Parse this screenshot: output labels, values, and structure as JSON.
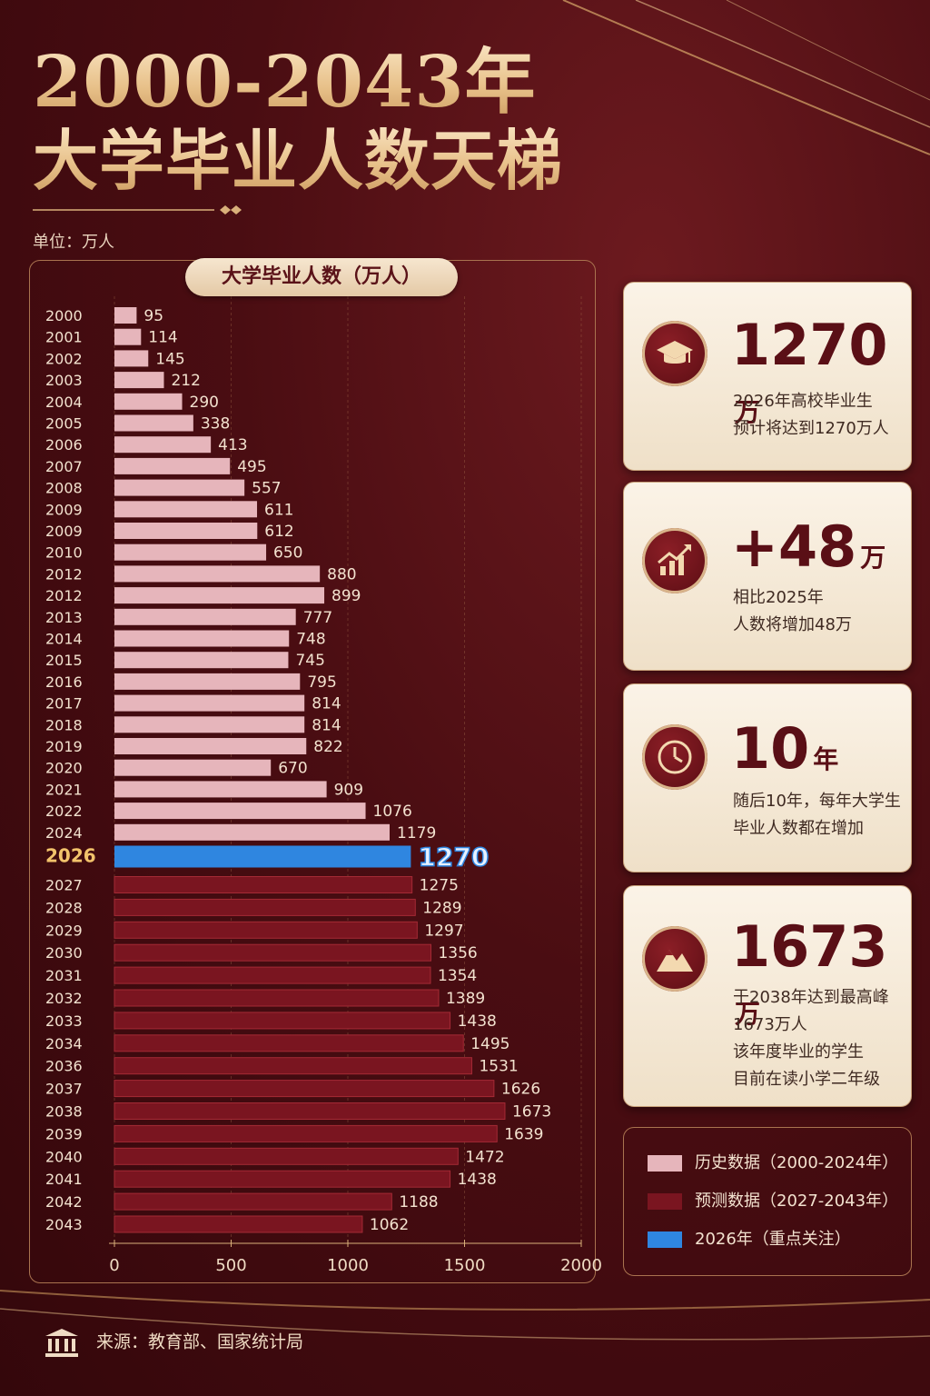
{
  "title_line1": "2000-2043年",
  "title_line2": "大学毕业人数天梯",
  "unit_label": "单位：万人",
  "chart_title": "大学毕业人数（万人）",
  "colors": {
    "history": "#e6b5bb",
    "forecast": "#7a1520",
    "highlight": "#2f86e0"
  },
  "chart_data": {
    "type": "bar",
    "orientation": "horizontal",
    "title": "大学毕业人数（万人）",
    "xlim": [
      0,
      2000
    ],
    "xticks": [
      "0",
      "500",
      "1000",
      "1500",
      "2000"
    ],
    "categories": [
      "2000",
      "2001",
      "2002",
      "2003",
      "2004",
      "2005",
      "2006",
      "2007",
      "2008",
      "2009",
      "2009",
      "2010",
      "2012",
      "2012",
      "2013",
      "2014",
      "2015",
      "2016",
      "2017",
      "2018",
      "2019",
      "2020",
      "2021",
      "2022",
      "2024",
      "2026",
      "2027",
      "2028",
      "2029",
      "2030",
      "2031",
      "2032",
      "2033",
      "2034",
      "2036",
      "2037",
      "2038",
      "2039",
      "2040",
      "2041",
      "2042",
      "2043"
    ],
    "values": [
      95,
      114,
      145,
      212,
      290,
      338,
      413,
      495,
      557,
      611,
      612,
      650,
      880,
      899,
      777,
      748,
      745,
      795,
      814,
      814,
      822,
      670,
      909,
      1076,
      1179,
      1270,
      1275,
      1289,
      1297,
      1356,
      1354,
      1389,
      1438,
      1495,
      1531,
      1626,
      1673,
      1639,
      1472,
      1438,
      1188,
      1062
    ],
    "groups": [
      "history",
      "history",
      "history",
      "history",
      "history",
      "history",
      "history",
      "history",
      "history",
      "history",
      "history",
      "history",
      "history",
      "history",
      "history",
      "history",
      "history",
      "history",
      "history",
      "history",
      "history",
      "history",
      "history",
      "history",
      "history",
      "highlight",
      "forecast",
      "forecast",
      "forecast",
      "forecast",
      "forecast",
      "forecast",
      "forecast",
      "forecast",
      "forecast",
      "forecast",
      "forecast",
      "forecast",
      "forecast",
      "forecast",
      "forecast",
      "forecast"
    ],
    "legend": [
      "历史数据（2000-2024年）",
      "预测数据（2027-2043年）",
      "2026年（重点关注）"
    ]
  },
  "cards": [
    {
      "big": "1270",
      "unit": "万",
      "desc": [
        "2026年高校毕业生",
        "预计将达到1270万人"
      ],
      "icon": "graduation-cap-icon"
    },
    {
      "big": "+48",
      "unit": "万",
      "desc": [
        "相比2025年",
        "人数将增加48万"
      ],
      "icon": "growth-chart-icon"
    },
    {
      "big": "10",
      "unit": "年",
      "desc": [
        "随后10年，每年大学生",
        "毕业人数都在增加"
      ],
      "icon": "clock-icon"
    },
    {
      "big": "1673",
      "unit": "万",
      "desc": [
        "于2038年达到最高峰",
        "1673万人",
        "该年度毕业的学生",
        "目前在读小学二年级"
      ],
      "icon": "mountain-icon"
    }
  ],
  "source": "来源：教育部、国家统计局"
}
